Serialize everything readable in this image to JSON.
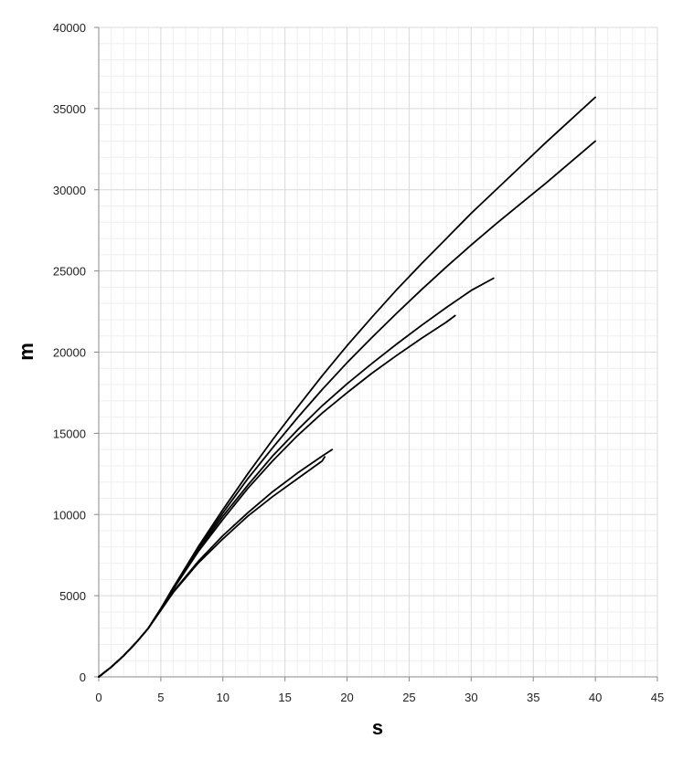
{
  "chart_data": {
    "type": "line",
    "title": "",
    "xlabel": "s",
    "ylabel": "m",
    "xlim": [
      0,
      45
    ],
    "ylim": [
      0,
      40000
    ],
    "x_ticks": [
      0,
      5,
      10,
      15,
      20,
      25,
      30,
      35,
      40,
      45
    ],
    "y_ticks": [
      0,
      5000,
      10000,
      15000,
      20000,
      25000,
      30000,
      35000,
      40000
    ],
    "x_minor_step": 1,
    "y_minor_step": 1000,
    "grid": true,
    "legend": "none",
    "line_color": "#000000",
    "series": [
      {
        "x": [
          0,
          1,
          2,
          3,
          4,
          5,
          6,
          8,
          10,
          12,
          14,
          16,
          18,
          18.2
        ],
        "y": [
          0,
          600,
          1300,
          2100,
          3000,
          4100,
          5200,
          7000,
          8500,
          9900,
          11100,
          12200,
          13300,
          13550
        ]
      },
      {
        "x": [
          0,
          1,
          2,
          3,
          4,
          5,
          6,
          8,
          10,
          12,
          14,
          16,
          18,
          18.8
        ],
        "y": [
          0,
          600,
          1300,
          2100,
          3000,
          4100,
          5250,
          7100,
          8700,
          10100,
          11400,
          12550,
          13600,
          14000
        ]
      },
      {
        "x": [
          0,
          1,
          2,
          3,
          4,
          5,
          6,
          8,
          10,
          12,
          14,
          16,
          18,
          20,
          22,
          24,
          26,
          28,
          28.7
        ],
        "y": [
          0,
          600,
          1300,
          2100,
          3000,
          4200,
          5400,
          7700,
          9700,
          11600,
          13300,
          14850,
          16250,
          17500,
          18700,
          19800,
          20850,
          21850,
          22250
        ]
      },
      {
        "x": [
          0,
          1,
          2,
          3,
          4,
          5,
          6,
          8,
          10,
          12,
          14,
          16,
          18,
          20,
          22,
          24,
          26,
          28,
          30,
          31.8
        ],
        "y": [
          0,
          600,
          1300,
          2100,
          3000,
          4200,
          5400,
          7800,
          9900,
          11800,
          13600,
          15200,
          16700,
          18050,
          19300,
          20500,
          21650,
          22750,
          23800,
          24550
        ]
      },
      {
        "x": [
          0,
          1,
          2,
          3,
          4,
          5,
          6,
          8,
          10,
          12,
          14,
          16,
          18,
          20,
          22,
          24,
          26,
          28,
          30,
          32,
          34,
          36,
          38,
          40
        ],
        "y": [
          0,
          600,
          1300,
          2100,
          3000,
          4200,
          5500,
          7900,
          10100,
          12200,
          14100,
          15950,
          17700,
          19350,
          20900,
          22400,
          23850,
          25250,
          26600,
          27900,
          29150,
          30400,
          31700,
          33000
        ]
      },
      {
        "x": [
          0,
          1,
          2,
          3,
          4,
          5,
          6,
          8,
          10,
          12,
          14,
          16,
          18,
          20,
          22,
          24,
          26,
          28,
          30,
          32,
          34,
          36,
          38,
          40
        ],
        "y": [
          0,
          600,
          1300,
          2100,
          3000,
          4200,
          5500,
          8000,
          10300,
          12500,
          14600,
          16600,
          18550,
          20400,
          22150,
          23850,
          25450,
          27000,
          28550,
          30000,
          31450,
          32900,
          34300,
          35700
        ]
      }
    ]
  }
}
